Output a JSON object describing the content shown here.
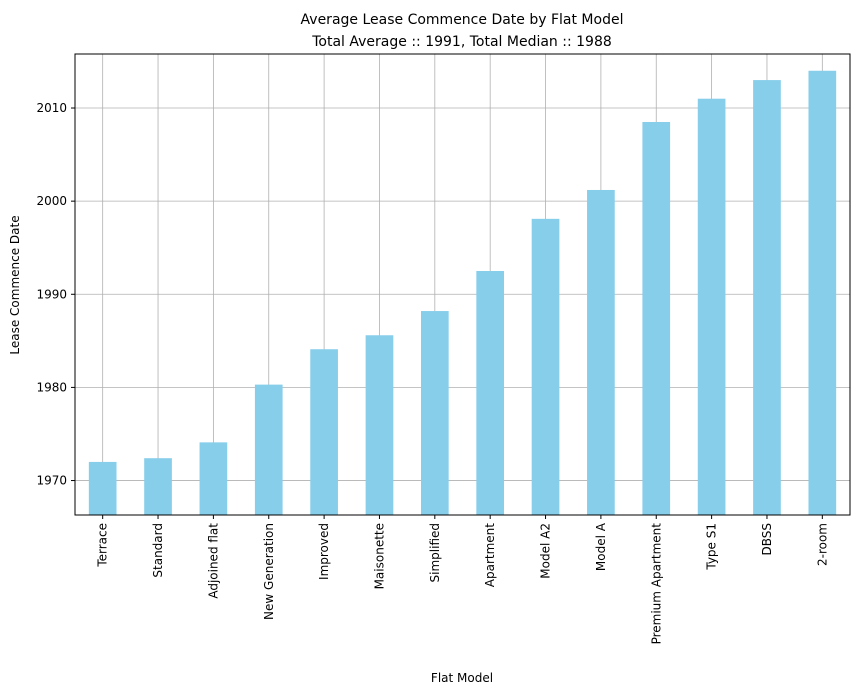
{
  "chart_data": {
    "type": "bar",
    "title": "Average Lease Commence Date by Flat Model",
    "subtitle": "Total Average :: 1991, Total Median :: 1988",
    "xlabel": "Flat Model",
    "ylabel": "Lease Commence Date",
    "categories": [
      "Terrace",
      "Standard",
      "Adjoined flat",
      "New Generation",
      "Improved",
      "Maisonette",
      "Simplified",
      "Apartment",
      "Model A2",
      "Model A",
      "Premium Apartment",
      "Type S1",
      "DBSS",
      "2-room"
    ],
    "values": [
      1972.0,
      1972.4,
      1974.1,
      1980.3,
      1984.1,
      1985.6,
      1988.2,
      1992.5,
      1998.1,
      2001.2,
      2008.5,
      2011.0,
      2013.0,
      2014.0
    ],
    "ylim": [
      1966.3,
      2015.8
    ],
    "yticks": [
      1970,
      1980,
      1990,
      2000,
      2010
    ],
    "grid": true,
    "bar_color": "#87ceeb"
  }
}
